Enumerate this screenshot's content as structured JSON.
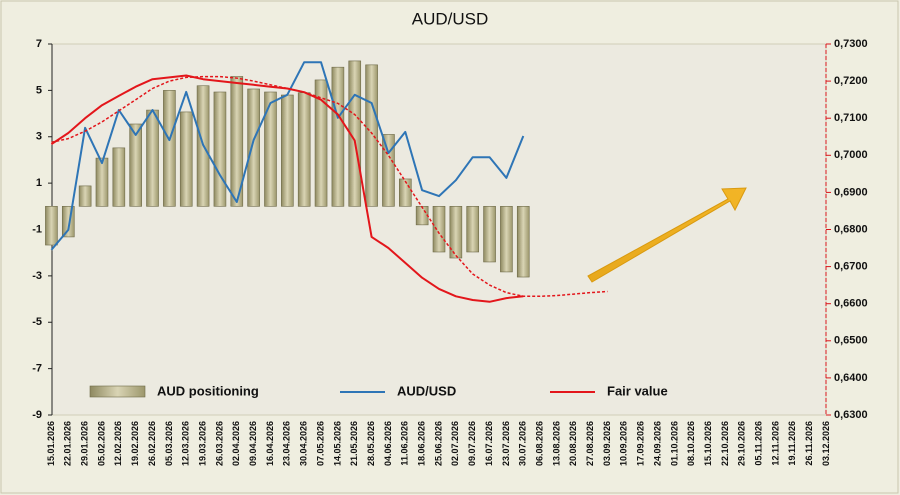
{
  "chart_data": {
    "type": "bar",
    "title": "AUD/USD",
    "categories": [
      "15.01.2026",
      "22.01.2026",
      "29.01.2026",
      "05.02.2026",
      "12.02.2026",
      "19.02.2026",
      "26.02.2026",
      "05.03.2026",
      "12.03.2026",
      "19.03.2026",
      "26.03.2026",
      "02.04.2026",
      "09.04.2026",
      "16.04.2026",
      "23.04.2026",
      "30.04.2026",
      "07.05.2026",
      "14.05.2026",
      "21.05.2026",
      "28.05.2026",
      "04.06.2026",
      "11.06.2026",
      "18.06.2026",
      "25.06.2026",
      "02.07.2026",
      "09.07.2026",
      "16.07.2026",
      "23.07.2026",
      "30.07.2026",
      "06.08.2026",
      "13.08.2026",
      "20.08.2026",
      "27.08.2026",
      "03.09.2026",
      "10.09.2026",
      "17.09.2026",
      "24.09.2026",
      "01.10.2026",
      "08.10.2026",
      "15.10.2026",
      "22.10.2026",
      "29.10.2026",
      "05.11.2026",
      "12.11.2026",
      "19.11.2026",
      "26.11.2026",
      "03.12.2026"
    ],
    "series": [
      {
        "name": "AUD positioning",
        "type": "bar",
        "color": "#b3ad82",
        "values": [
          -1.67,
          -1.32,
          0.88,
          2.08,
          2.52,
          3.55,
          4.15,
          5.0,
          4.07,
          5.2,
          4.93,
          5.6,
          5.06,
          4.93,
          4.8,
          4.9,
          5.45,
          6.0,
          6.27,
          6.1,
          3.1,
          1.18,
          -0.8,
          -1.97,
          -2.23,
          -1.97,
          -2.4,
          -2.83,
          -3.05,
          null,
          null,
          null,
          null,
          null,
          null,
          null,
          null,
          null,
          null,
          null,
          null,
          null,
          null,
          null,
          null,
          null,
          null
        ]
      },
      {
        "name": "AUD/USD",
        "type": "line",
        "axis": "y2",
        "color": "#2e75b6",
        "values": [
          0.6745,
          0.6799,
          0.7074,
          0.6979,
          0.7122,
          0.7055,
          0.7122,
          0.7041,
          0.7171,
          0.7028,
          0.6947,
          0.6874,
          0.7041,
          0.7141,
          0.7163,
          0.7251,
          0.7251,
          0.7101,
          0.7163,
          0.7141,
          0.7006,
          0.7063,
          0.6906,
          0.689,
          0.6933,
          0.6995,
          0.6995,
          0.6939,
          0.7052,
          null,
          null,
          null,
          null,
          null,
          null,
          null,
          null,
          null,
          null,
          null,
          null,
          null,
          null,
          null,
          null,
          null,
          null
        ]
      },
      {
        "name": "Fair value",
        "type": "line",
        "axis": "y2",
        "color": "#e3161b",
        "values": [
          0.703,
          0.706,
          0.71,
          0.7135,
          0.716,
          0.7185,
          0.7205,
          0.721,
          0.7215,
          0.7205,
          0.72,
          0.7195,
          0.719,
          0.7185,
          0.718,
          0.717,
          0.715,
          0.711,
          0.704,
          0.678,
          0.675,
          0.671,
          0.667,
          0.664,
          0.662,
          0.661,
          0.6605,
          0.6615,
          0.662,
          null,
          null,
          null,
          null,
          null,
          null,
          null,
          null,
          null,
          null,
          null,
          null,
          null,
          null,
          null,
          null,
          null,
          null
        ]
      },
      {
        "type": "line",
        "axis": "y2",
        "color": "#e3161b",
        "dashed": true,
        "values": [
          0.7035,
          0.7045,
          0.7065,
          0.709,
          0.712,
          0.715,
          0.718,
          0.72,
          0.721,
          0.7212,
          0.7212,
          0.7208,
          0.72,
          0.719,
          0.718,
          0.717,
          0.7155,
          0.714,
          0.711,
          0.706,
          0.7,
          0.693,
          0.686,
          0.679,
          0.673,
          0.668,
          0.665,
          0.663,
          0.662,
          0.662,
          0.6622,
          0.6626,
          0.663,
          0.6633,
          null,
          null,
          null,
          null,
          null,
          null,
          null,
          null,
          null,
          null,
          null,
          null,
          null
        ]
      }
    ],
    "ylim": [
      -9,
      7
    ],
    "yticks": [
      -9,
      -7,
      -5,
      -3,
      -1,
      1,
      3,
      5,
      7
    ],
    "y2lim": [
      0.63,
      0.73
    ],
    "y2ticks": [
      {
        "value": 0.63,
        "label": "0,6300"
      },
      {
        "value": 0.64,
        "label": "0,6400"
      },
      {
        "value": 0.65,
        "label": "0,6500"
      },
      {
        "value": 0.66,
        "label": "0,6600"
      },
      {
        "value": 0.67,
        "label": "0,6700"
      },
      {
        "value": 0.68,
        "label": "0,6800"
      },
      {
        "value": 0.69,
        "label": "0,6900"
      },
      {
        "value": 0.7,
        "label": "0,7000"
      },
      {
        "value": 0.71,
        "label": "0,7100"
      },
      {
        "value": 0.72,
        "label": "0,7200"
      },
      {
        "value": 0.73,
        "label": "0,7300"
      }
    ],
    "grid": false
  }
}
